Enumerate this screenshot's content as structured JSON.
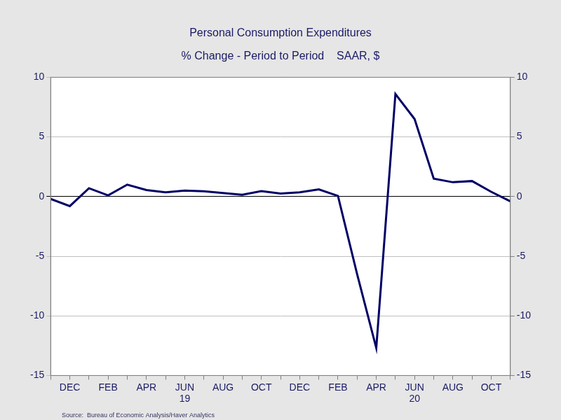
{
  "chart_data": {
    "type": "line",
    "title": "Personal Consumption Expenditures",
    "subtitle": "% Change - Period to Period    SAAR, $",
    "source": "Source:  Bureau of Economic Analysis/Haver Analytics",
    "categories": [
      null,
      "DEC",
      null,
      "FEB",
      null,
      "APR",
      null,
      [
        "JUN",
        "19"
      ],
      null,
      "AUG",
      null,
      "OCT",
      null,
      "DEC",
      null,
      "FEB",
      null,
      "APR",
      null,
      [
        "JUN",
        "20"
      ],
      null,
      "AUG",
      null,
      "OCT",
      null
    ],
    "series": [
      {
        "name": "Personal Consumption Expenditures",
        "color": "#000066",
        "values": [
          -0.2,
          -0.8,
          0.7,
          0.1,
          1.0,
          0.55,
          0.35,
          0.5,
          0.45,
          0.3,
          0.15,
          0.45,
          0.25,
          0.35,
          0.6,
          0.05,
          -6.5,
          -12.7,
          8.6,
          6.5,
          1.5,
          1.2,
          1.3,
          0.4,
          -0.4
        ]
      }
    ],
    "ylim": [
      -15,
      10
    ],
    "yticks": [
      -15,
      -10,
      -5,
      0,
      5,
      10
    ],
    "y2lim": [
      -15,
      10
    ],
    "y2ticks": [
      -15,
      -10,
      -5,
      0,
      5,
      10
    ],
    "grid": true
  }
}
